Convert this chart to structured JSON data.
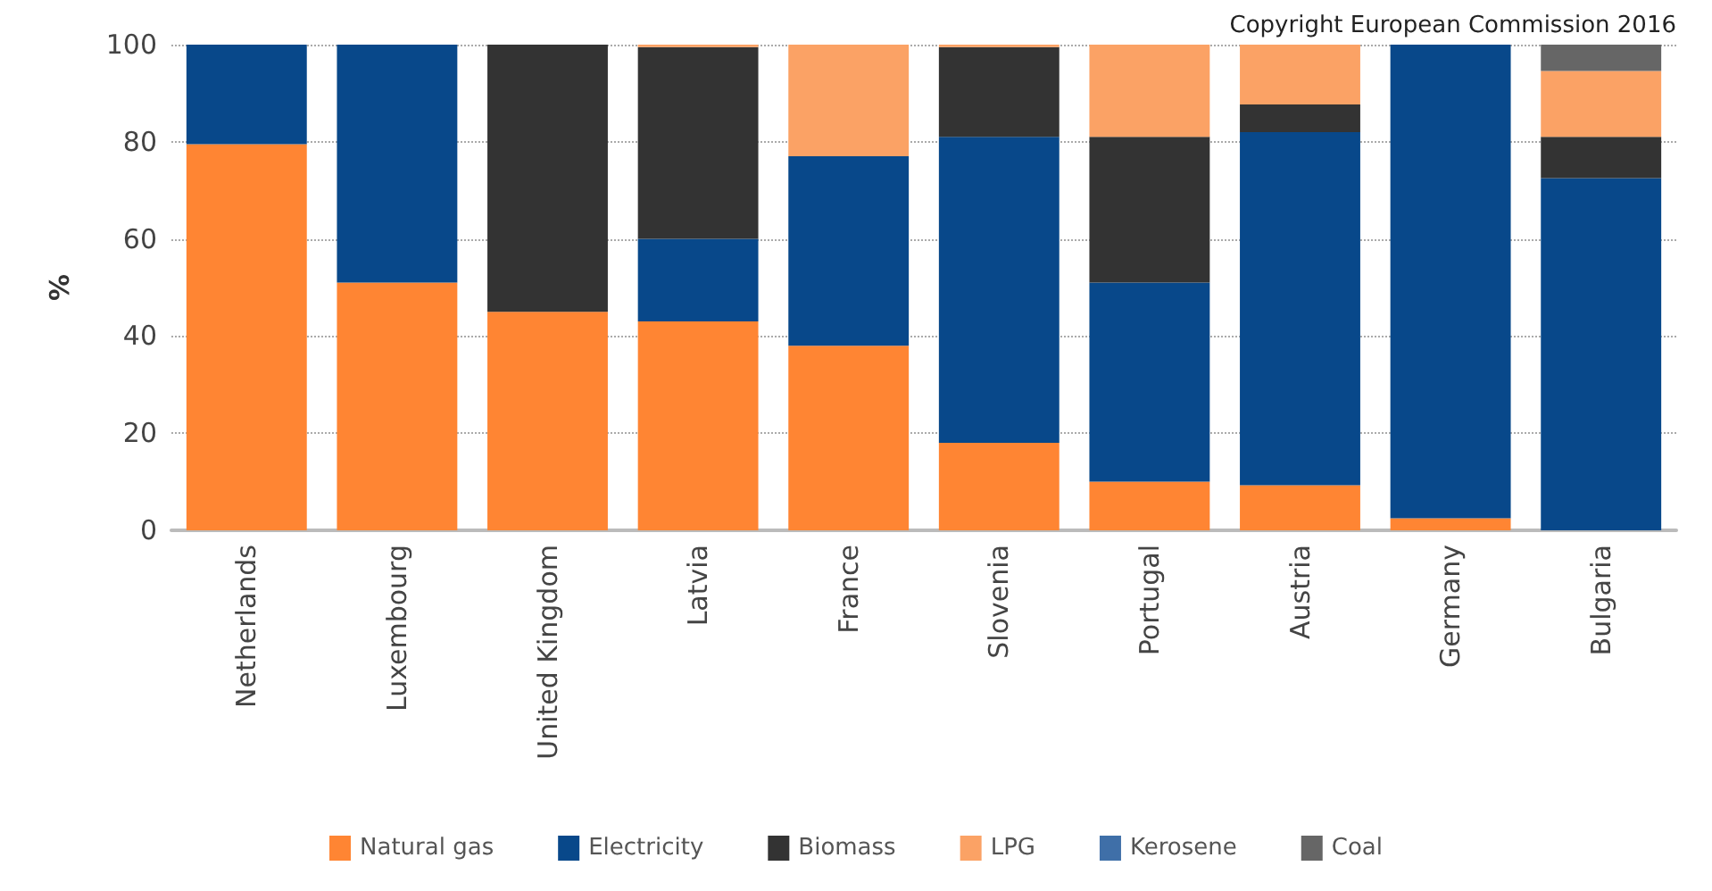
{
  "chart_data": {
    "type": "bar",
    "stacked": true,
    "ylabel": "%",
    "annotations": [
      "Copyright European Commission 2016"
    ],
    "categories": [
      "Netherlands",
      "Luxembourg",
      "United Kingdom",
      "Latvia",
      "France",
      "Slovenia",
      "Portugal",
      "Austria",
      "Germany",
      "Bulgaria"
    ],
    "series": [
      {
        "name": "Natural gas",
        "color": "#ff8533",
        "values": [
          79.5,
          51,
          45,
          43,
          38,
          18,
          10,
          9.3,
          2.5,
          0
        ]
      },
      {
        "name": "Electricity",
        "color": "#08488a",
        "values": [
          20.5,
          49,
          0,
          17,
          39,
          63,
          41,
          72.7,
          97.5,
          72.5
        ]
      },
      {
        "name": "Biomass",
        "color": "#333333",
        "values": [
          0,
          0,
          55,
          39.5,
          0,
          18.5,
          30,
          5.7,
          0,
          8.5
        ]
      },
      {
        "name": "LPG",
        "color": "#fba265",
        "values": [
          0,
          0,
          0,
          0.5,
          23,
          0.5,
          19,
          12.3,
          0,
          13.6
        ]
      },
      {
        "name": "Kerosene",
        "color": "#3f6fa8",
        "values": [
          0,
          0,
          0,
          0,
          0,
          0,
          0,
          0,
          0,
          0
        ]
      },
      {
        "name": "Coal",
        "color": "#666666",
        "values": [
          0,
          0,
          0,
          0,
          0,
          0,
          0,
          0,
          0,
          5.4
        ]
      }
    ],
    "ylim": [
      0,
      100
    ],
    "yticks": [
      0,
      20,
      40,
      60,
      80,
      100
    ],
    "grid": "y",
    "legend": "bottom"
  }
}
